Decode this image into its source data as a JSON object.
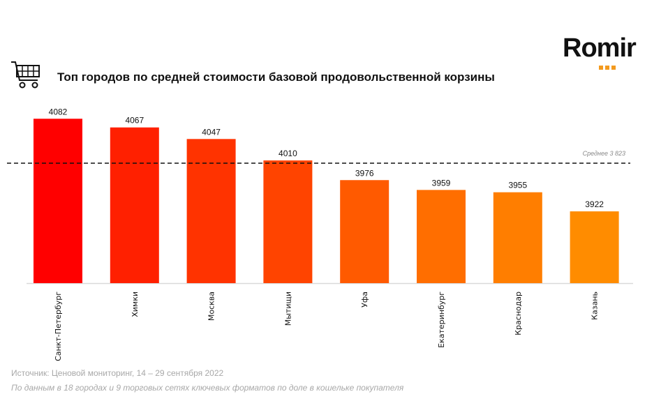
{
  "logo": "Romir",
  "title": "Топ городов по средней стоимости базовой продовольственной корзины",
  "footer": {
    "source": "Источник: Ценовой мониторинг, 14 – 29 сентября 2022",
    "note": "По данным в 18 городах и 9 торговых сетях ключевых форматов по доле в кошельке покупателя"
  },
  "chart_data": {
    "type": "bar",
    "title": "Топ городов по средней стоимости базовой продовольственной корзины",
    "categories": [
      "Санкт-Петербург",
      "Химки",
      "Москва",
      "Мытищи",
      "Уфа",
      "Екатеринбург",
      "Краснодар",
      "Казань"
    ],
    "values": [
      4082,
      4067,
      4047,
      4010,
      3976,
      3959,
      3955,
      3922
    ],
    "colors": [
      "#ff0000",
      "#ff2000",
      "#ff3300",
      "#ff4400",
      "#ff5a00",
      "#ff6e00",
      "#ff7e00",
      "#ff8c00"
    ],
    "reference_line": {
      "label": "Среднее 3 823",
      "value": 3823,
      "style": "dashed"
    },
    "grid": false,
    "xlabel": "",
    "ylabel": ""
  }
}
